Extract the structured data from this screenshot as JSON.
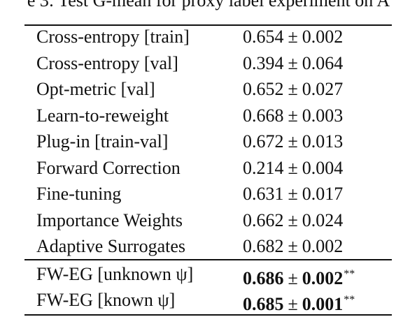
{
  "caption": "e 3: Test G-mean for proxy label experiment on A",
  "table": {
    "rows": [
      {
        "method": "Cross-entropy [train]",
        "mean": "0.654",
        "pm": "±",
        "std": "0.002"
      },
      {
        "method": "Cross-entropy [val]",
        "mean": "0.394",
        "pm": "±",
        "std": "0.064"
      },
      {
        "method": "Opt-metric [val]",
        "mean": "0.652",
        "pm": "±",
        "std": "0.027"
      },
      {
        "method": "Learn-to-reweight",
        "mean": "0.668",
        "pm": "±",
        "std": "0.003"
      },
      {
        "method": "Plug-in [train-val]",
        "mean": "0.672",
        "pm": "±",
        "std": "0.013"
      },
      {
        "method": "Forward Correction",
        "mean": "0.214",
        "pm": "±",
        "std": "0.004"
      },
      {
        "method": "Fine-tuning",
        "mean": "0.631",
        "pm": "±",
        "std": "0.017"
      },
      {
        "method": "Importance Weights",
        "mean": "0.662",
        "pm": "±",
        "std": "0.024"
      },
      {
        "method": "Adaptive Surrogates",
        "mean": "0.682",
        "pm": "±",
        "std": "0.002"
      },
      {
        "method": "FW-EG [unknown ψ]",
        "mean": "0.686",
        "pm": "±",
        "std": "0.002",
        "marker": "**",
        "bold": true
      },
      {
        "method": "FW-EG [known ψ]",
        "mean": "0.685",
        "pm": "±",
        "std": "0.001",
        "marker": "**",
        "bold": true
      }
    ]
  }
}
